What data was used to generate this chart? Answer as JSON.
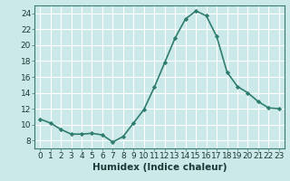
{
  "x": [
    0,
    1,
    2,
    3,
    4,
    5,
    6,
    7,
    8,
    9,
    10,
    11,
    12,
    13,
    14,
    15,
    16,
    17,
    18,
    19,
    20,
    21,
    22,
    23
  ],
  "y": [
    10.7,
    10.2,
    9.4,
    8.8,
    8.8,
    8.9,
    8.7,
    7.8,
    8.5,
    10.2,
    11.9,
    14.7,
    17.8,
    20.9,
    23.3,
    24.3,
    23.7,
    21.1,
    16.6,
    14.8,
    14.0,
    12.9,
    12.1,
    12.0
  ],
  "line_color": "#2e7d6e",
  "marker": "D",
  "marker_size": 2.2,
  "xlabel": "Humidex (Indice chaleur)",
  "ylim": [
    7,
    25
  ],
  "xlim": [
    -0.5,
    23.5
  ],
  "yticks": [
    8,
    10,
    12,
    14,
    16,
    18,
    20,
    22,
    24
  ],
  "xticks": [
    0,
    1,
    2,
    3,
    4,
    5,
    6,
    7,
    8,
    9,
    10,
    11,
    12,
    13,
    14,
    15,
    16,
    17,
    18,
    19,
    20,
    21,
    22,
    23
  ],
  "background_color": "#cce9e9",
  "grid_color": "#ffffff",
  "tick_label_fontsize": 6.5,
  "xlabel_fontsize": 7.5,
  "line_width": 1.2,
  "spine_color": "#3a7a70"
}
